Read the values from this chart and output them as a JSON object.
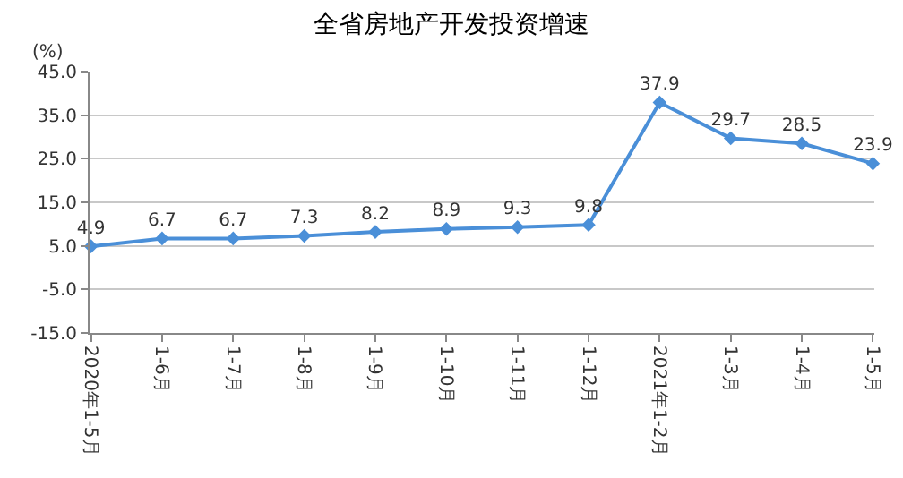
{
  "chart_data": {
    "type": "line",
    "title": "全省房地产开发投资增速",
    "ylabel": "(%)",
    "categories": [
      "2020年1-5月",
      "1-6月",
      "1-7月",
      "1-8月",
      "1-9月",
      "1-10月",
      "1-11月",
      "1-12月",
      "2021年1-2月",
      "1-3月",
      "1-4月",
      "1-5月"
    ],
    "series": [
      {
        "color": "#4a8fd8",
        "values": [
          4.9,
          6.7,
          6.7,
          7.3,
          8.2,
          8.9,
          9.3,
          9.8,
          37.9,
          29.7,
          28.5,
          23.9
        ]
      }
    ],
    "ylim": [
      -15,
      45
    ],
    "yticks": [
      {
        "value": -15,
        "label": "-15.0"
      },
      {
        "value": -5,
        "label": "-5.0"
      },
      {
        "value": 5,
        "label": "5.0"
      },
      {
        "value": 15,
        "label": "15.0"
      },
      {
        "value": 25,
        "label": "25.0"
      },
      {
        "value": 35,
        "label": "35.0"
      },
      {
        "value": 45,
        "label": "45.0"
      }
    ],
    "grid": "y",
    "marker": "diamond",
    "line_style": "solid",
    "data_labels": true
  }
}
